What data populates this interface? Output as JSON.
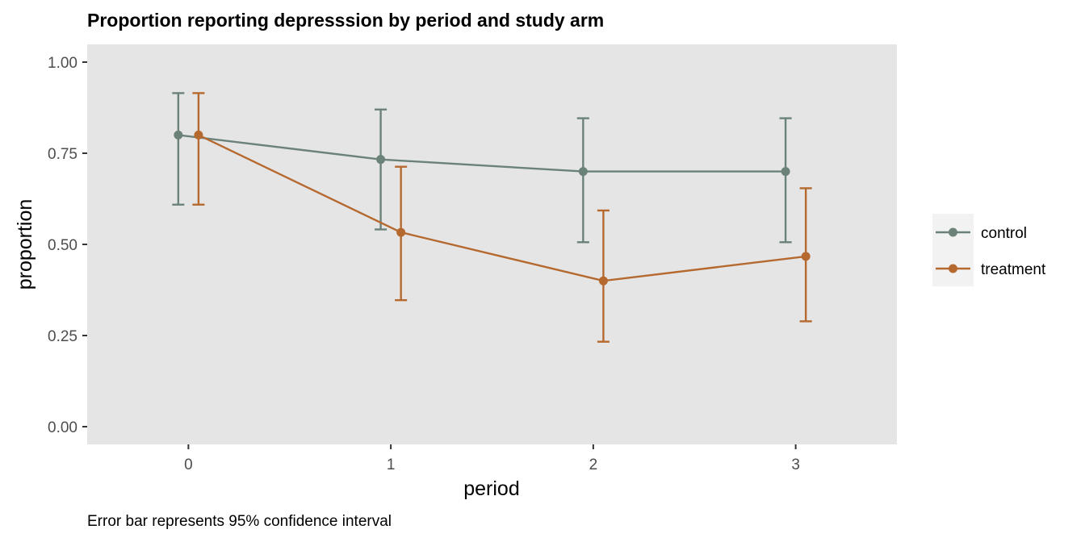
{
  "chart_data": {
    "type": "line",
    "title": "Proportion reporting depresssion by period and study arm",
    "xlabel": "period",
    "ylabel": "proportion",
    "caption": "Error bar represents 95% confidence interval",
    "x": [
      0,
      1,
      2,
      3
    ],
    "x_tick_labels": [
      "0",
      "1",
      "2",
      "3"
    ],
    "xlim": [
      -0.5,
      3.5
    ],
    "ylim": [
      0,
      1
    ],
    "y_ticks": [
      0.0,
      0.25,
      0.5,
      0.75,
      1.0
    ],
    "y_tick_labels": [
      "0.00",
      "0.25",
      "0.50",
      "0.75",
      "1.00"
    ],
    "grid": false,
    "legend_position": "right",
    "series": [
      {
        "name": "control",
        "color": "#6b8279",
        "values": [
          0.8,
          0.733,
          0.7,
          0.7
        ],
        "lower": [
          0.609,
          0.541,
          0.506,
          0.506
        ],
        "upper": [
          0.915,
          0.87,
          0.846,
          0.846
        ]
      },
      {
        "name": "treatment",
        "color": "#b5692f",
        "values": [
          0.8,
          0.533,
          0.4,
          0.467
        ],
        "lower": [
          0.609,
          0.347,
          0.233,
          0.289
        ],
        "upper": [
          0.915,
          0.713,
          0.593,
          0.654
        ]
      }
    ],
    "panel_background": "#e5e5e5"
  }
}
